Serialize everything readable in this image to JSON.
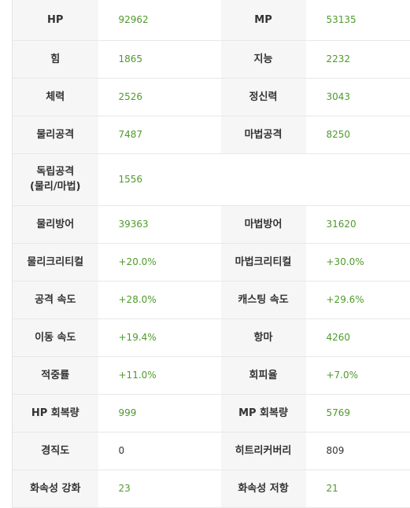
{
  "rows": [
    {
      "l1": "HP",
      "v1": "92962",
      "l2": "MP",
      "v2": "53135"
    },
    {
      "l1": "힘",
      "v1": "1865",
      "l2": "지능",
      "v2": "2232"
    },
    {
      "l1": "체력",
      "v1": "2526",
      "l2": "정신력",
      "v2": "3043"
    },
    {
      "l1": "물리공격",
      "v1": "7487",
      "l2": "마법공격",
      "v2": "8250"
    },
    {
      "l1a": "독립공격",
      "l1b": "(물리/마법)",
      "v1": "1556"
    },
    {
      "l1": "물리방어",
      "v1": "39363",
      "l2": "마법방어",
      "v2": "31620"
    },
    {
      "l1": "물리크리티컬",
      "v1": "+20.0%",
      "l2": "마법크리티컬",
      "v2": "+30.0%"
    },
    {
      "l1": "공격 속도",
      "v1": "+28.0%",
      "l2": "캐스팅 속도",
      "v2": "+29.6%"
    },
    {
      "l1": "이동 속도",
      "v1": "+19.4%",
      "l2": "항마",
      "v2": "4260"
    },
    {
      "l1": "적중률",
      "v1": "+11.0%",
      "l2": "회피율",
      "v2": "+7.0%"
    },
    {
      "l1": "HP 회복량",
      "v1": "999",
      "l2": "MP 회복량",
      "v2": "5769"
    },
    {
      "l1": "경직도",
      "v1": "0",
      "l2": "히트리커버리",
      "v2": "809"
    },
    {
      "l1": "화속성 강화",
      "v1": "23",
      "l2": "화속성 저항",
      "v2": "21"
    }
  ],
  "colors": {
    "value_green": "#4f9a2b",
    "value_plain": "#333333",
    "label_bg": "#f6f6f6"
  }
}
